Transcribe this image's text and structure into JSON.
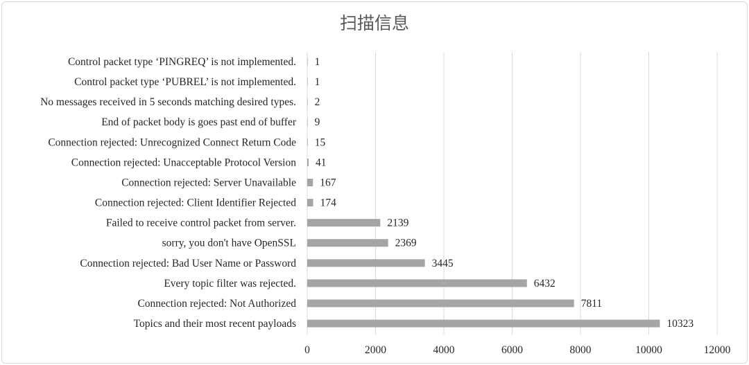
{
  "chart_data": {
    "type": "bar",
    "orientation": "horizontal",
    "title": "扫描信息",
    "categories": [
      "Control packet type ‘PINGREQ’ is not implemented.",
      "Control packet type ‘PUBREL’ is not implemented.",
      "No messages received in 5 seconds matching desired types.",
      "End of packet body is goes past end of buffer",
      "Connection rejected: Unrecognized Connect Return Code",
      "Connection rejected: Unacceptable Protocol Version",
      "Connection rejected: Server Unavailable",
      "Connection rejected: Client Identifier Rejected",
      "Failed to receive control packet from server.",
      "sorry, you don't have OpenSSL",
      "Connection rejected: Bad User Name or Password",
      "Every topic filter was rejected.",
      "Connection rejected: Not Authorized",
      "Topics and their most recent payloads"
    ],
    "values": [
      1,
      1,
      2,
      9,
      15,
      41,
      167,
      174,
      2139,
      2369,
      3445,
      6432,
      7811,
      10323
    ],
    "xlim": [
      0,
      12000
    ],
    "xticks": [
      0,
      2000,
      4000,
      6000,
      8000,
      10000,
      12000
    ],
    "grid": true,
    "bar_color": "#a5a5a5",
    "grid_color": "#d9d9d9"
  }
}
